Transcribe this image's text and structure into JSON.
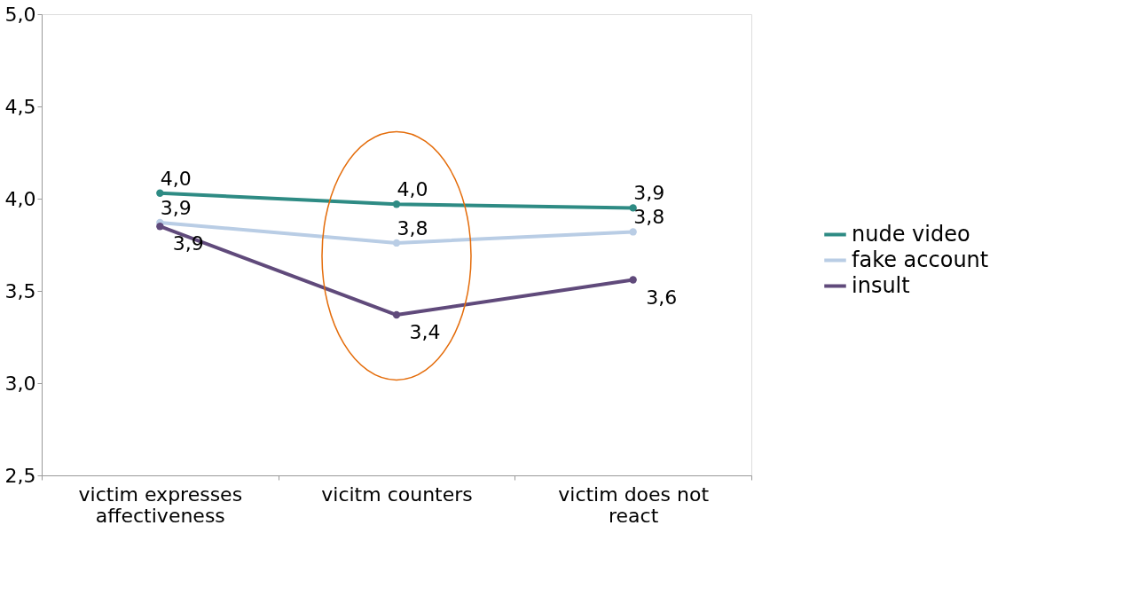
{
  "chart_data": {
    "type": "line",
    "categories": [
      "victim expresses affectiveness",
      "vicitm counters",
      "victim does not react"
    ],
    "series": [
      {
        "name": "nude video",
        "color": "#2e8b84",
        "values": [
          4.03,
          3.97,
          3.95
        ],
        "value_labels": [
          "4,0",
          "4,0",
          "3,9"
        ]
      },
      {
        "name": "fake account",
        "color": "#b9cde5",
        "values": [
          3.87,
          3.76,
          3.82
        ],
        "value_labels": [
          "3,9",
          "3,8",
          "3,8"
        ]
      },
      {
        "name": "insult",
        "color": "#604a7b",
        "values": [
          3.85,
          3.37,
          3.56
        ],
        "value_labels": [
          "3,9",
          "3,4",
          "3,6"
        ]
      }
    ],
    "ylim": [
      2.5,
      5.0
    ],
    "yticks": [
      {
        "value": 2.5,
        "label": "2,5"
      },
      {
        "value": 3.0,
        "label": "3,0"
      },
      {
        "value": 3.5,
        "label": "3,5"
      },
      {
        "value": 4.0,
        "label": "4,0"
      },
      {
        "value": 4.5,
        "label": "4,5"
      },
      {
        "value": 5.0,
        "label": "5,0"
      }
    ],
    "grid": false,
    "legend": "right",
    "marker": "circle",
    "line_style": "solid"
  }
}
